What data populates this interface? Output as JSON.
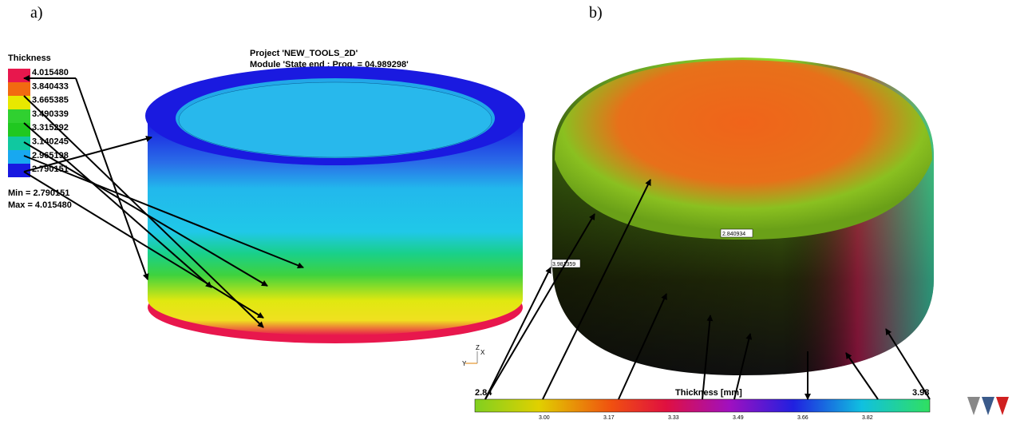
{
  "panel_a": {
    "label": "a)",
    "legend_title": "Thickness",
    "legend_values": [
      "4.015480",
      "3.840433",
      "3.665385",
      "3.490339",
      "3.315292",
      "3.140245",
      "2.965198",
      "2.790151"
    ],
    "min": "Min = 2.790151",
    "max": "Max = 4.015480",
    "project": "Project 'NEW_TOOLS_2D'",
    "module": "Module 'State end : Prog. = 04.989298'",
    "axes": [
      "Y",
      "X",
      "Z"
    ]
  },
  "panel_b": {
    "label": "b)",
    "probes": [
      "2.840934",
      "3.981359"
    ],
    "colorbar": {
      "min": "2.84",
      "title": "Thickness [mm]",
      "max": "3.98",
      "ticks": [
        "3.00",
        "3.17",
        "3.33",
        "3.49",
        "3.66",
        "3.82"
      ]
    }
  }
}
